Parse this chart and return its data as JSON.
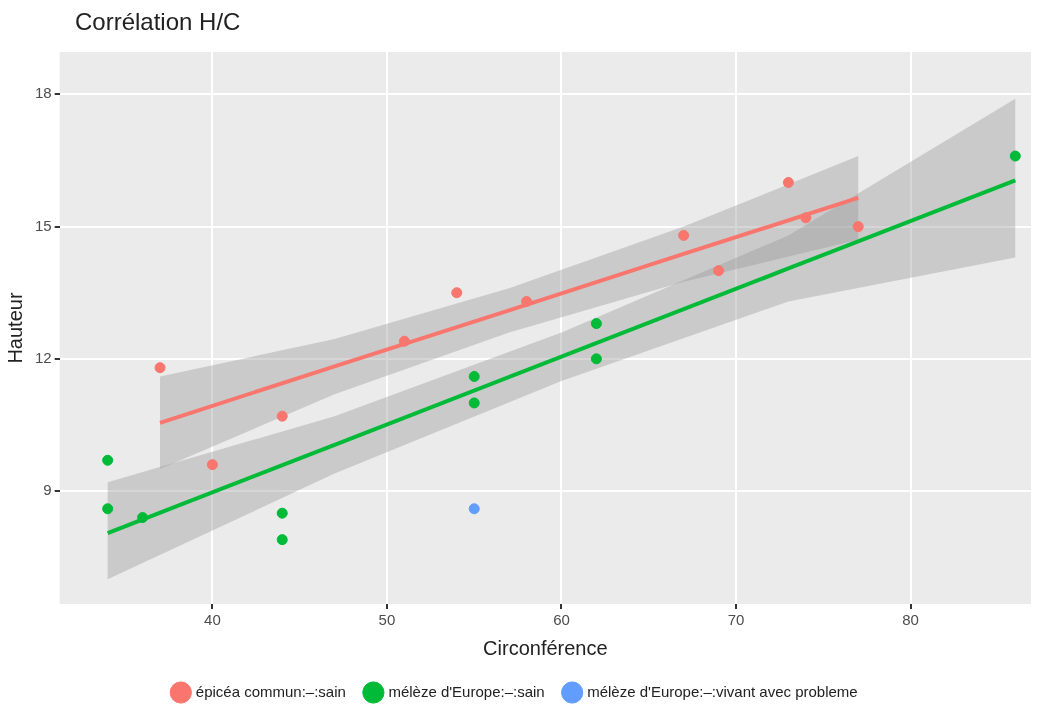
{
  "chart_data": {
    "type": "scatter",
    "title": "Corrélation H/C",
    "xlabel": "Circonférence",
    "ylabel": "Hauteur",
    "xlim": [
      31.25,
      86.9
    ],
    "xticks": [
      40,
      50,
      60,
      70,
      80
    ],
    "ylim": [
      6.44,
      18.96
    ],
    "yticks": [
      9,
      12,
      15,
      18
    ],
    "grid": true,
    "legend": "bottom",
    "marker": "circle",
    "line_style": "solid",
    "series": [
      {
        "name": "épicéa commun:–:sain",
        "color": "#f8766d",
        "x": [
          37,
          40,
          44,
          51,
          54,
          58,
          67,
          69,
          73,
          74,
          77
        ],
        "values": [
          11.8,
          9.6,
          10.7,
          12.4,
          13.5,
          13.3,
          14.8,
          14.0,
          16.0,
          15.2,
          15.0
        ]
      },
      {
        "name": "mélèze d'Europe:–:sain",
        "color": "#00ba38",
        "x": [
          34,
          34,
          36,
          44,
          44,
          55,
          55,
          62,
          62,
          86
        ],
        "values": [
          9.7,
          8.6,
          8.4,
          8.5,
          7.9,
          11.6,
          11.0,
          12.8,
          12.0,
          16.6
        ]
      },
      {
        "name": "mélèze d'Europe:–:vivant avec probleme",
        "color": "#619cff",
        "x": [
          55
        ],
        "values": [
          8.6
        ]
      },
      {
        "type": "line",
        "marker": "none",
        "color": "#f8766d",
        "x": [
          37,
          47,
          57,
          67,
          77
        ],
        "values": [
          10.55,
          11.83,
          13.1,
          14.38,
          15.65
        ],
        "lower": [
          9.5,
          11.2,
          12.6,
          13.75,
          14.7
        ],
        "upper": [
          11.6,
          12.45,
          13.6,
          15.0,
          16.6
        ]
      },
      {
        "type": "line",
        "marker": "none",
        "color": "#00ba38",
        "x": [
          34,
          47,
          60,
          73,
          86
        ],
        "values": [
          8.05,
          10.05,
          12.05,
          14.05,
          16.05
        ],
        "lower": [
          7.0,
          9.4,
          11.5,
          13.3,
          14.3
        ],
        "upper": [
          9.2,
          10.7,
          12.6,
          14.8,
          17.9
        ]
      }
    ]
  }
}
